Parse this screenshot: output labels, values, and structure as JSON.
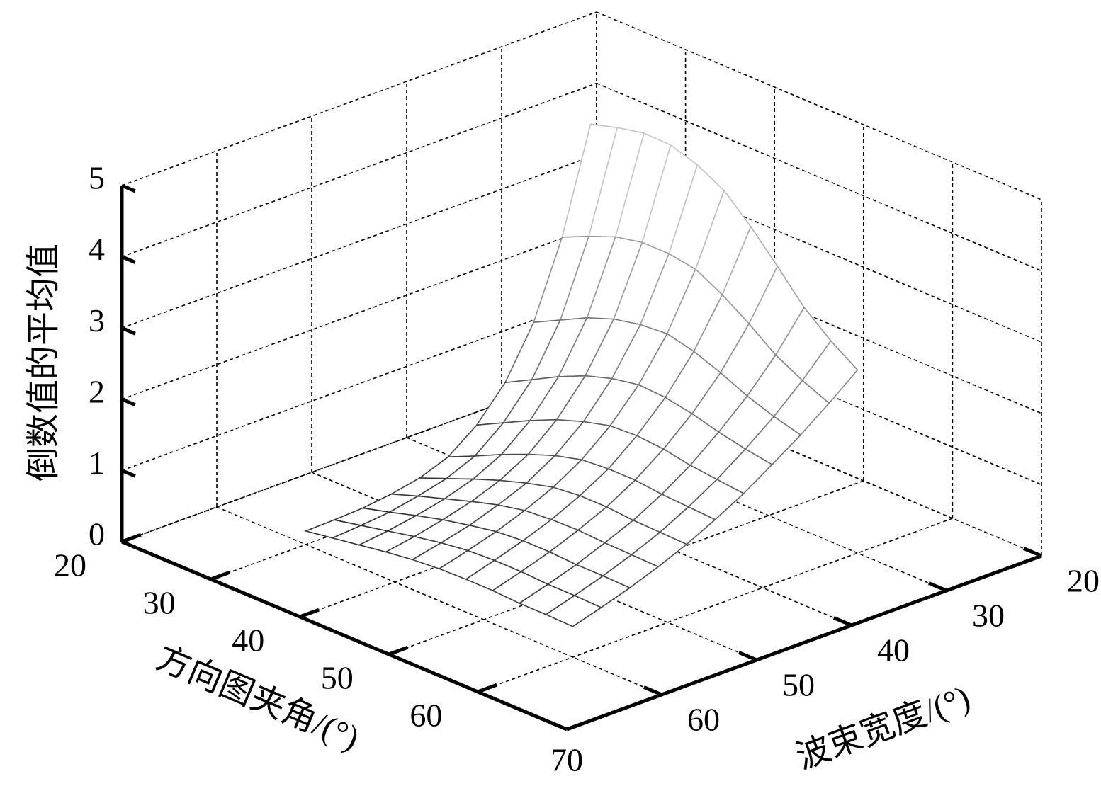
{
  "chart_data": {
    "type": "surface",
    "xlabel": "方向图夹角/(°)",
    "ylabel": "波束宽度/(°)",
    "zlabel": "倒数值的平均值",
    "x": [
      30,
      33,
      36,
      39,
      42,
      45,
      48,
      51,
      54,
      57,
      60
    ],
    "y": [
      30,
      33,
      36,
      39,
      42,
      45,
      48,
      51,
      54,
      57,
      60
    ],
    "z": [
      [
        4.44,
        3.0,
        1.95,
        1.25,
        0.8,
        0.5,
        0.35,
        0.27,
        0.22,
        0.2,
        0.19
      ],
      [
        4.55,
        3.17,
        2.14,
        1.45,
        0.99,
        0.67,
        0.5,
        0.4,
        0.32,
        0.28,
        0.25
      ],
      [
        4.63,
        3.32,
        2.33,
        1.65,
        1.18,
        0.85,
        0.65,
        0.52,
        0.43,
        0.36,
        0.31
      ],
      [
        4.62,
        3.4,
        2.47,
        1.82,
        1.35,
        1.01,
        0.79,
        0.64,
        0.53,
        0.44,
        0.37
      ],
      [
        4.5,
        3.4,
        2.55,
        1.94,
        1.48,
        1.15,
        0.91,
        0.75,
        0.61,
        0.51,
        0.42
      ],
      [
        4.3,
        3.34,
        2.58,
        2.01,
        1.58,
        1.25,
        1.01,
        0.83,
        0.68,
        0.56,
        0.45
      ],
      [
        3.95,
        3.14,
        2.49,
        1.99,
        1.6,
        1.28,
        1.05,
        0.86,
        0.71,
        0.58,
        0.46
      ],
      [
        3.55,
        2.89,
        2.35,
        1.92,
        1.57,
        1.28,
        1.05,
        0.87,
        0.71,
        0.58,
        0.46
      ],
      [
        3.13,
        2.61,
        2.18,
        1.82,
        1.5,
        1.24,
        1.02,
        0.85,
        0.69,
        0.56,
        0.44
      ],
      [
        2.82,
        2.41,
        2.05,
        1.74,
        1.46,
        1.22,
        1.01,
        0.84,
        0.69,
        0.56,
        0.44
      ],
      [
        2.57,
        2.25,
        1.95,
        1.68,
        1.42,
        1.2,
        1.0,
        0.83,
        0.68,
        0.55,
        0.43
      ]
    ],
    "xlim": [
      20,
      70
    ],
    "ylim": [
      20,
      70
    ],
    "zlim": [
      0,
      5
    ],
    "xticks": [
      20,
      30,
      40,
      50,
      60,
      70
    ],
    "yticks": [
      20,
      30,
      40,
      50,
      60,
      70
    ],
    "zticks": [
      0,
      1,
      2,
      3,
      4,
      5
    ],
    "grid": true,
    "colormap": "gray"
  }
}
